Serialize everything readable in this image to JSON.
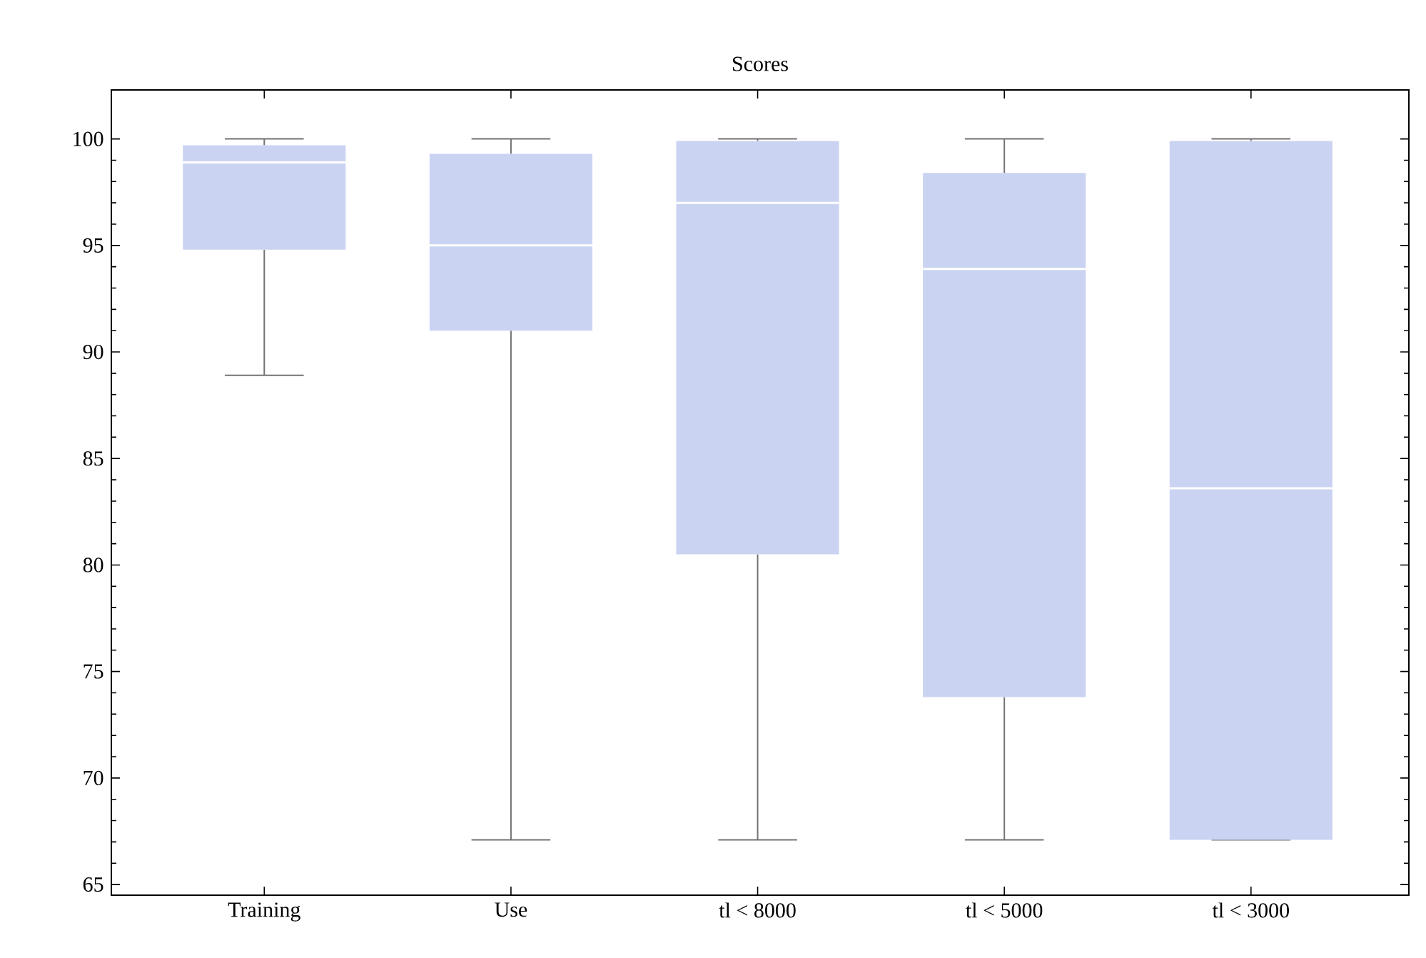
{
  "chart_data": {
    "type": "box",
    "title": "Scores",
    "categories": [
      "Training",
      "Use",
      "tl < 8000",
      "tl < 5000",
      "tl < 3000"
    ],
    "boxes": [
      {
        "low": 88.9,
        "q1": 94.8,
        "median": 98.9,
        "q3": 99.7,
        "high": 100
      },
      {
        "low": 67.1,
        "q1": 91.0,
        "median": 95.0,
        "q3": 99.3,
        "high": 100
      },
      {
        "low": 67.1,
        "q1": 80.5,
        "median": 97.0,
        "q3": 99.9,
        "high": 100
      },
      {
        "low": 67.1,
        "q1": 73.8,
        "median": 93.9,
        "q3": 98.4,
        "high": 100
      },
      {
        "low": 67.1,
        "q1": 67.1,
        "median": 83.6,
        "q3": 99.9,
        "high": 100
      }
    ],
    "color": "#cbd3f2",
    "ylim": [
      64.5,
      102.3
    ],
    "yticks": [
      65,
      70,
      75,
      80,
      85,
      90,
      95,
      100
    ],
    "grid": false
  }
}
